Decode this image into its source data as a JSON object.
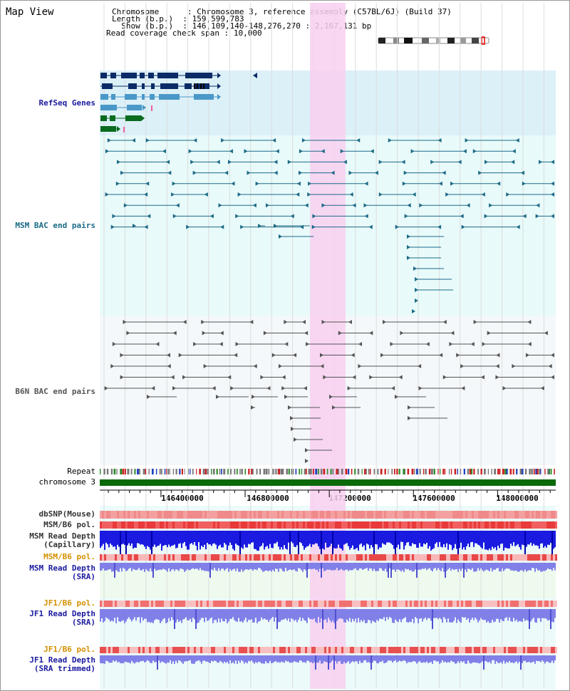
{
  "title": "Map View",
  "info": [
    {
      "key": "Chromosome      ",
      "value": "Chromosome 3, reference assembly (C57BL/6J) (Build 37)"
    },
    {
      "key": "Length (b.p.)  ",
      "value": "159,599,783"
    },
    {
      "key": "  Show (b.p.)  ",
      "value": "146,109,140-148,276,270 : 2,167,131 bp"
    },
    {
      "key": "Read coverage check span",
      "value": "10,000"
    }
  ],
  "tracks": {
    "refseq": "RefSeq Genes",
    "msm_bac": "MSM BAC end pairs",
    "b6n_bac": "B6N BAC end pairs",
    "repeat": "Repeat",
    "chromosome": "chromosome 3",
    "dbsnp": "dbSNP(Mouse)",
    "msm_b6_pol_1": "MSM/B6 pol.",
    "msm_read_depth_cap_1": "MSM Read Depth",
    "msm_read_depth_cap_2": "(Capillary)",
    "msm_b6_pol_2": "MSM/B6 pol.",
    "msm_read_depth_sra_1": "MSM Read Depth",
    "msm_read_depth_sra_2": "(SRA)",
    "jf1_b6_pol_1": "JF1/B6 pol.",
    "jf1_read_depth_sra_1": "JF1 Read Depth",
    "jf1_read_depth_sra_2": "(SRA)",
    "jf1_b6_pol_2": "JF1/B6 pol.",
    "jf1_read_depth_trim_1": "JF1 Read Depth",
    "jf1_read_depth_trim_2": "(SRA trimmed)"
  },
  "axis": {
    "ticks": [
      "146400000",
      "146800000",
      "147200000",
      "147600000",
      "148000000"
    ],
    "tick_values": [
      146400000,
      146800000,
      147200000,
      147600000,
      148000000
    ],
    "range": [
      146109140,
      148276270
    ]
  },
  "colors": {
    "refseq_bg": "#dcf0f8",
    "msm_bg": "#e8fafa",
    "b6n_bg": "#f4f8fa",
    "highlight": "#f8d0f0",
    "refseq_dark": "#0b2b66",
    "refseq_light": "#4a98c8",
    "refseq_green": "#0a6a1e",
    "msm_pair": "#1d6a86",
    "b6n_pair": "#555555",
    "chromosome_bar": "#0a6a0a",
    "depth_blue": "#1a1ae0",
    "depth_light": "#8080e8",
    "label_blue": "#1a1aa0",
    "label_teal": "#1a6a86",
    "label_orange": "#d49000"
  }
}
